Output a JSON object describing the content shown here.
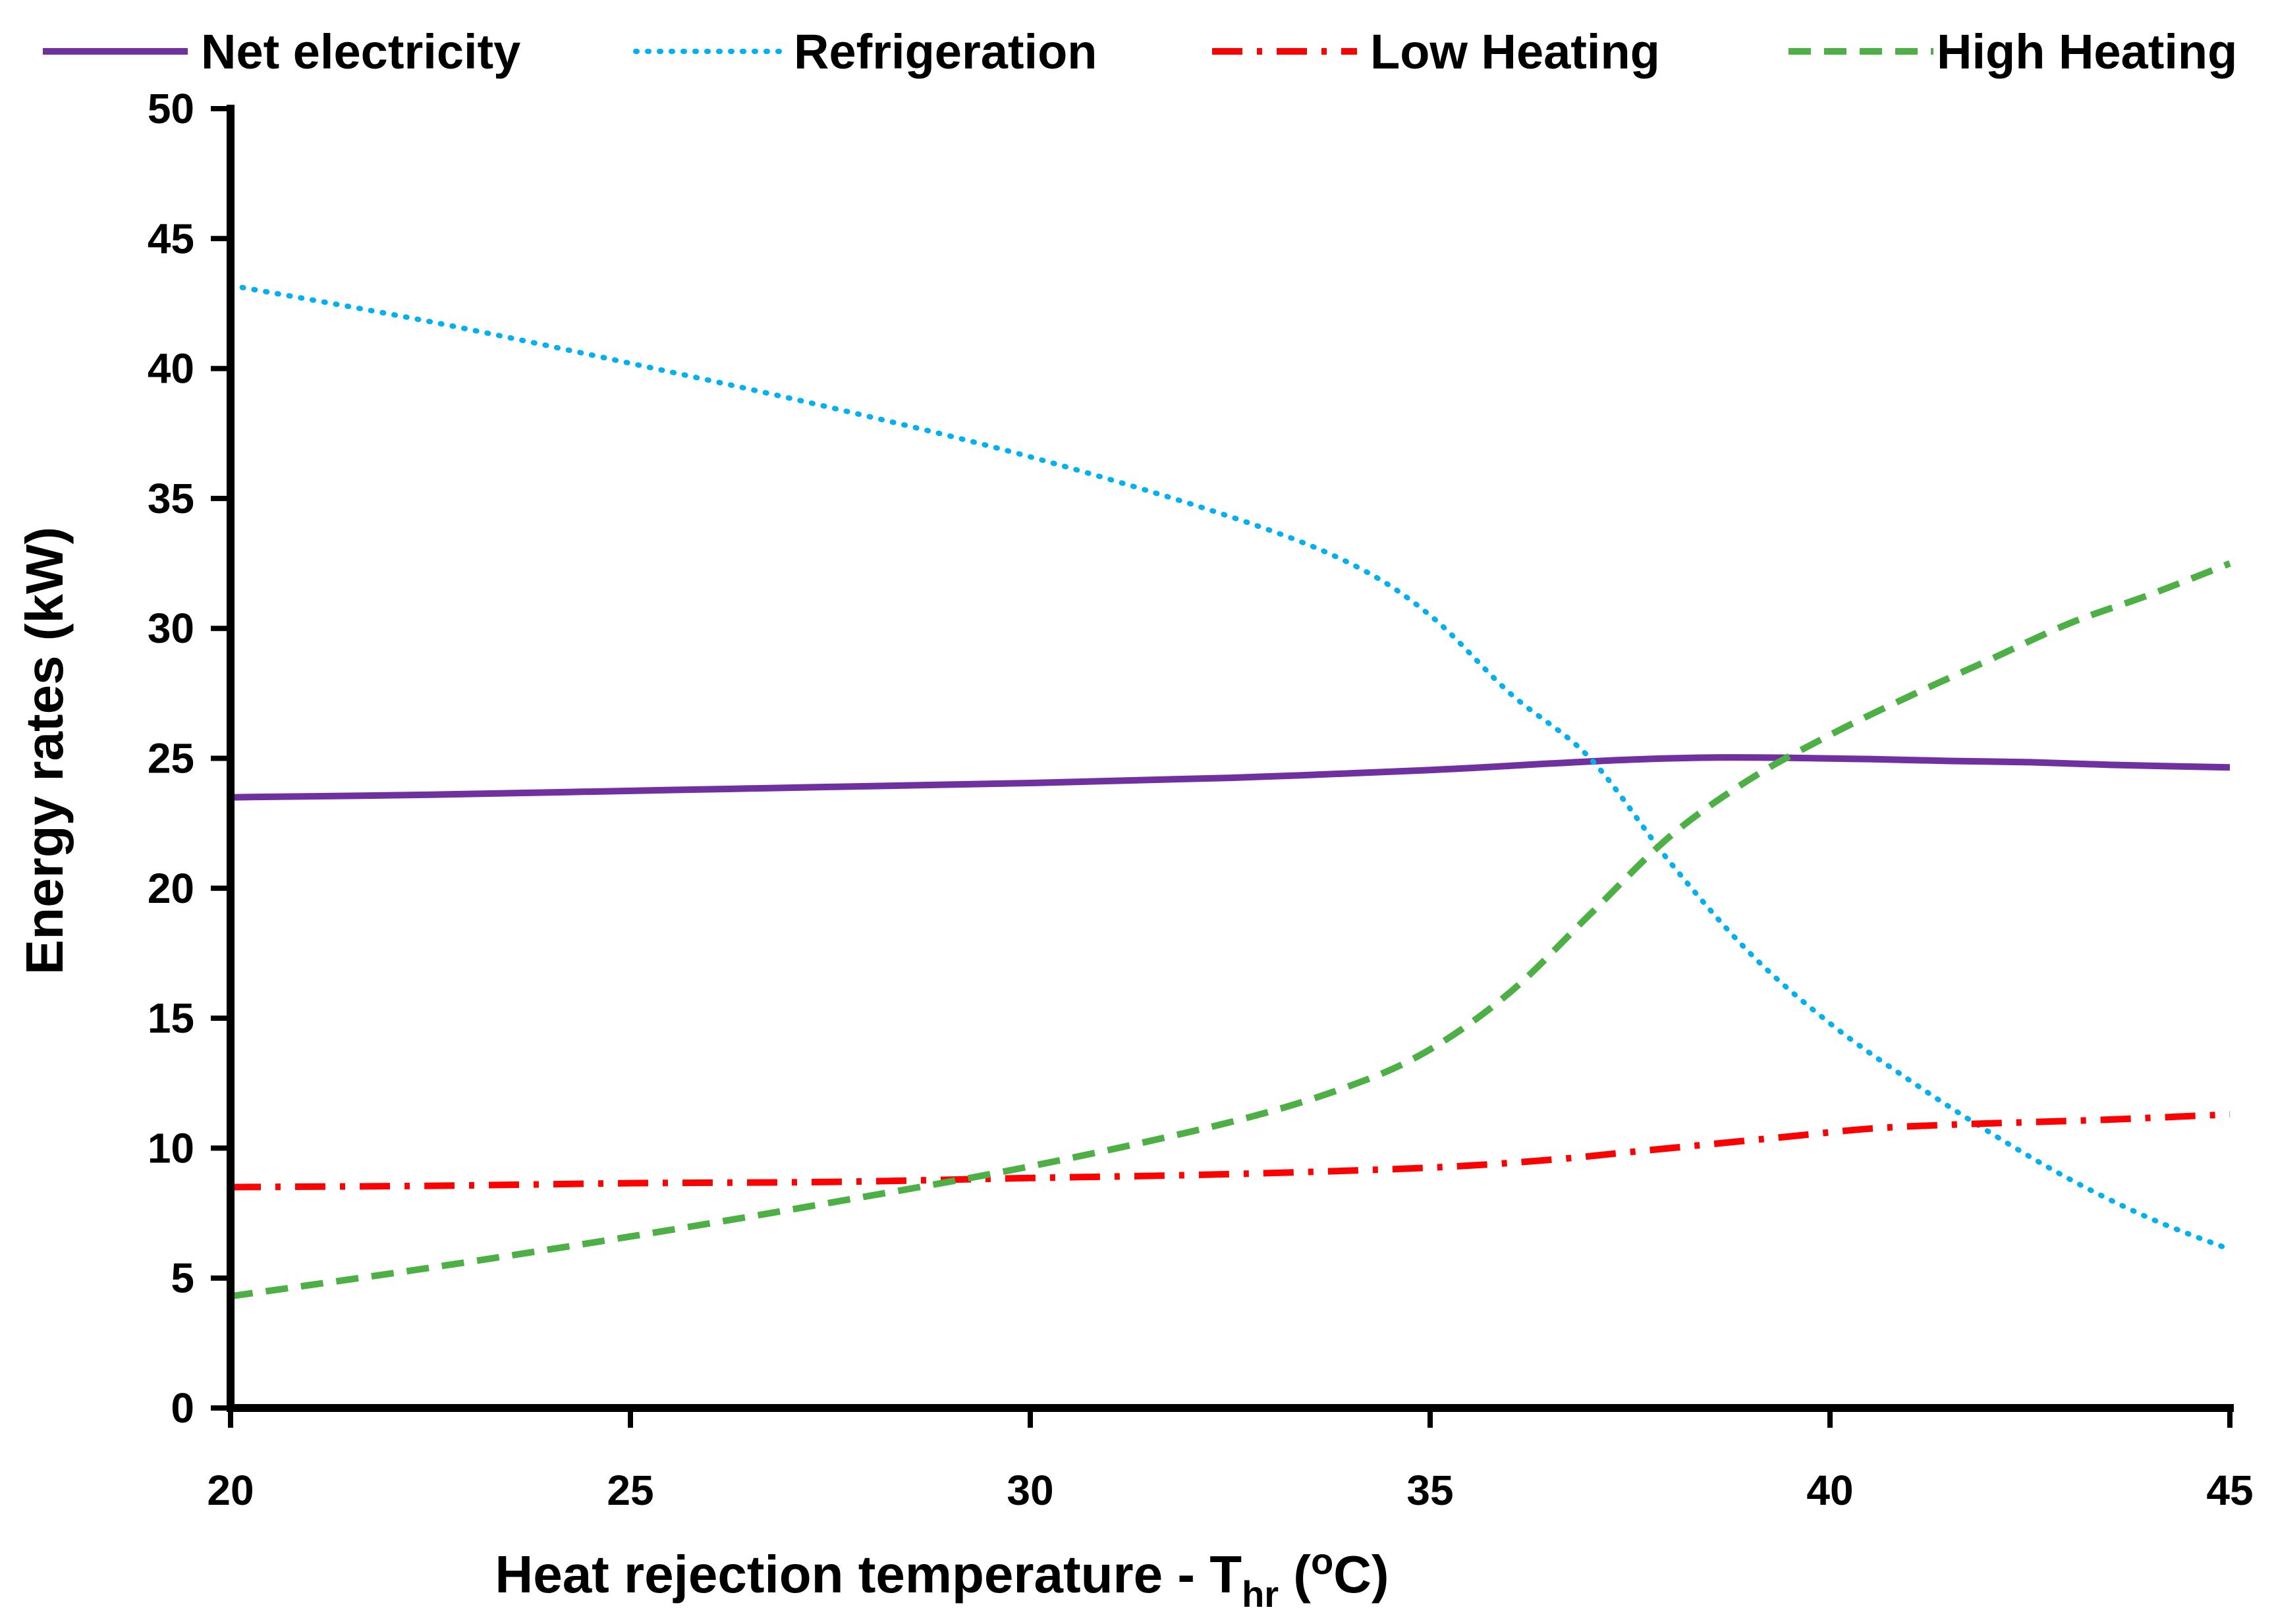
{
  "chart_data": {
    "type": "line",
    "title": "",
    "xlabel": {
      "main": "Heat rejection temperature - T",
      "subscript": "hr",
      "open": " (",
      "superscript": "o",
      "unit": "C)"
    },
    "ylabel": "Energy rates (kW)",
    "xlim": [
      20,
      45
    ],
    "ylim": [
      0,
      50
    ],
    "xticks": [
      20,
      25,
      30,
      35,
      40,
      45
    ],
    "yticks": [
      0,
      5,
      10,
      15,
      20,
      25,
      30,
      35,
      40,
      45,
      50
    ],
    "grid": false,
    "legend_position": "top",
    "series": [
      {
        "name": "Net electricity",
        "color": "#7030A0",
        "style": "solid",
        "x": [
          20,
          22.5,
          25,
          27.5,
          30,
          32.5,
          35,
          36.5,
          37.5,
          38.5,
          39.5,
          40.5,
          41.5,
          42.5,
          43.5,
          45
        ],
        "y": [
          23.5,
          23.6,
          23.75,
          23.9,
          24.05,
          24.25,
          24.55,
          24.8,
          24.95,
          25.03,
          25.02,
          24.97,
          24.9,
          24.85,
          24.75,
          24.65
        ]
      },
      {
        "name": "Refrigeration",
        "color": "#00B0F0",
        "style": "dotted",
        "x": [
          20,
          22.5,
          25,
          27.5,
          30,
          32.5,
          34,
          35,
          36,
          37,
          38,
          39,
          40,
          41,
          42,
          43,
          44,
          45
        ],
        "y": [
          43.2,
          41.8,
          40.2,
          38.5,
          36.6,
          34.3,
          32.5,
          30.5,
          27.5,
          25.0,
          21.0,
          17.5,
          14.8,
          12.6,
          10.6,
          8.8,
          7.3,
          6.1
        ]
      },
      {
        "name": "Low Heating",
        "color": "#FF0000",
        "style": "dashdot",
        "x": [
          20,
          22.5,
          25,
          27.5,
          30,
          32.5,
          35,
          36.5,
          37.5,
          38.5,
          39.5,
          40.5,
          41.5,
          42.5,
          43.5,
          45
        ],
        "y": [
          8.5,
          8.55,
          8.65,
          8.7,
          8.85,
          9.0,
          9.25,
          9.55,
          9.85,
          10.15,
          10.45,
          10.75,
          10.9,
          11.0,
          11.1,
          11.3
        ]
      },
      {
        "name": "High Heating",
        "color": "#4CB045",
        "style": "dashed",
        "x": [
          20,
          22.5,
          25,
          27.5,
          30,
          32.5,
          34,
          35,
          36,
          37,
          38,
          39,
          40,
          41,
          42,
          43,
          44,
          45
        ],
        "y": [
          4.3,
          5.4,
          6.6,
          7.9,
          9.3,
          11.0,
          12.4,
          13.8,
          16.0,
          19.0,
          22.0,
          24.2,
          25.9,
          27.4,
          28.8,
          30.2,
          31.3,
          32.5
        ]
      }
    ]
  }
}
